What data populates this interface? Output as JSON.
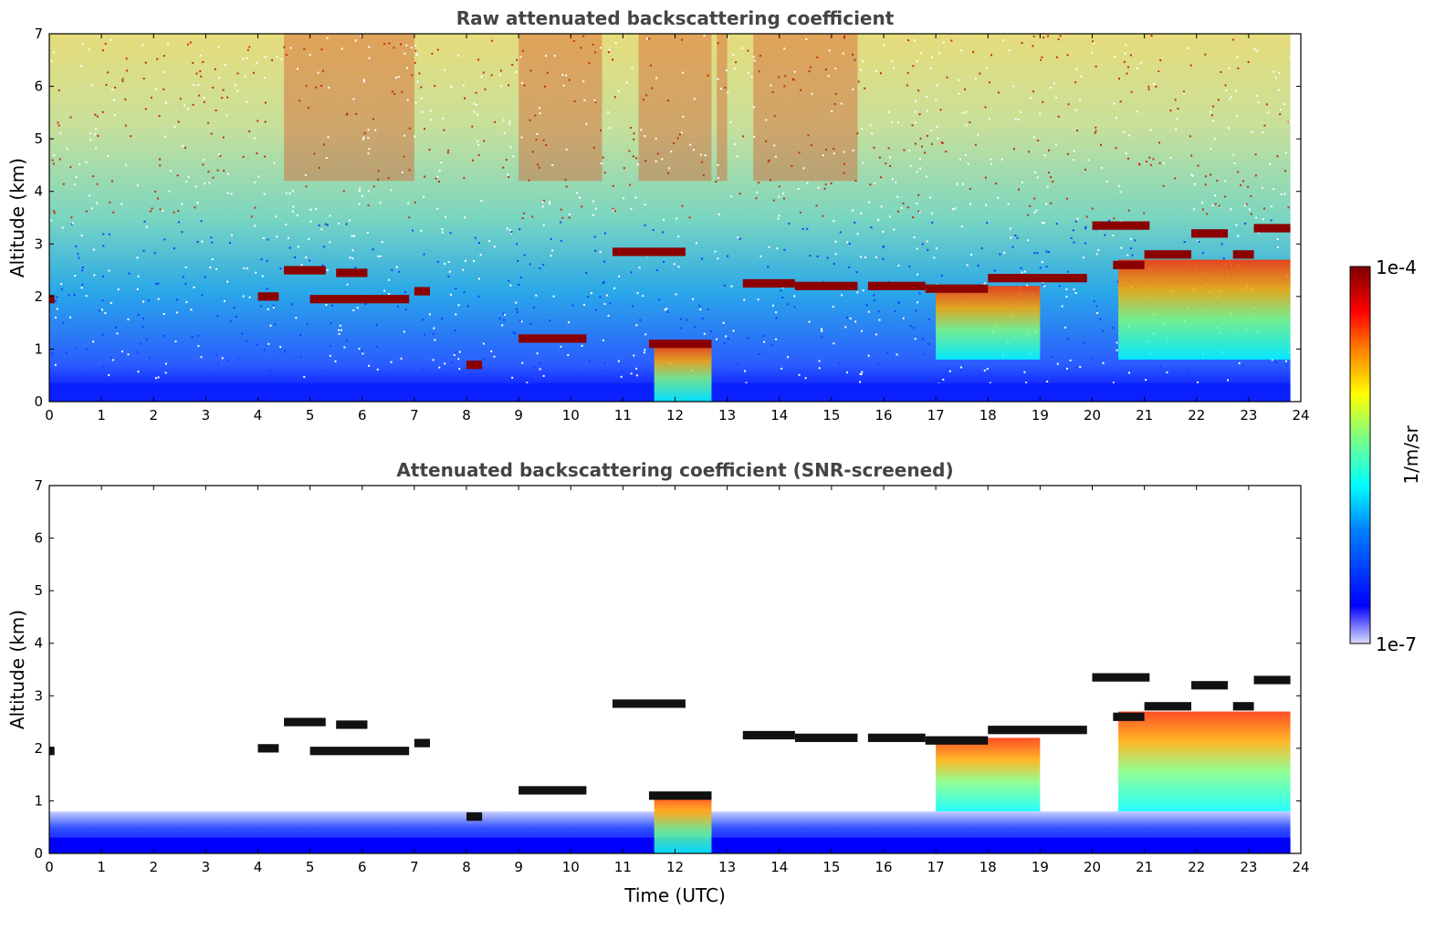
{
  "chart_data": [
    {
      "type": "heatmap",
      "title": "Raw attenuated backscattering coefficient",
      "xlabel": "",
      "ylabel": "Altitude (km)",
      "xlim": [
        0,
        24
      ],
      "ylim": [
        0,
        7
      ],
      "xticks": [
        "0",
        "1",
        "2",
        "3",
        "4",
        "5",
        "6",
        "7",
        "8",
        "9",
        "10",
        "11",
        "12",
        "13",
        "14",
        "15",
        "16",
        "17",
        "18",
        "19",
        "20",
        "21",
        "22",
        "23",
        "24"
      ],
      "yticks": [
        "0",
        "1",
        "2",
        "3",
        "4",
        "5",
        "6",
        "7"
      ],
      "x_units": "hours UTC",
      "y_units": "km",
      "data_extent_x": [
        0,
        23.8
      ],
      "cloud_layers": [
        {
          "x": [
            0.0,
            0.1
          ],
          "y": 1.95
        },
        {
          "x": [
            4.0,
            4.4
          ],
          "y": 2.0
        },
        {
          "x": [
            4.5,
            5.3
          ],
          "y": 2.5
        },
        {
          "x": [
            5.5,
            6.1
          ],
          "y": 2.45
        },
        {
          "x": [
            5.0,
            6.9
          ],
          "y": 1.95
        },
        {
          "x": [
            7.0,
            7.3
          ],
          "y": 2.1
        },
        {
          "x": [
            8.0,
            8.3
          ],
          "y": 0.7
        },
        {
          "x": [
            9.0,
            10.3
          ],
          "y": 1.2
        },
        {
          "x": [
            10.8,
            12.2
          ],
          "y": 2.85
        },
        {
          "x": [
            11.5,
            12.7
          ],
          "y": 1.1
        },
        {
          "x": [
            13.3,
            14.3
          ],
          "y": 2.25
        },
        {
          "x": [
            14.3,
            15.5
          ],
          "y": 2.2
        },
        {
          "x": [
            15.7,
            16.8
          ],
          "y": 2.2
        },
        {
          "x": [
            16.8,
            18.0
          ],
          "y": 2.15
        },
        {
          "x": [
            18.0,
            19.9
          ],
          "y": 2.35
        },
        {
          "x": [
            20.0,
            21.1
          ],
          "y": 3.35
        },
        {
          "x": [
            20.4,
            21.0
          ],
          "y": 2.6
        },
        {
          "x": [
            21.0,
            21.9
          ],
          "y": 2.8
        },
        {
          "x": [
            21.9,
            22.6
          ],
          "y": 3.2
        },
        {
          "x": [
            22.7,
            23.1
          ],
          "y": 2.8
        },
        {
          "x": [
            23.1,
            23.8
          ],
          "y": 3.3
        }
      ],
      "aerosol_plumes": [
        {
          "x": [
            17.0,
            19.0
          ],
          "y": [
            0.8,
            2.2
          ]
        },
        {
          "x": [
            20.5,
            23.8
          ],
          "y": [
            0.8,
            2.7
          ]
        },
        {
          "x": [
            11.6,
            12.7
          ],
          "y": [
            0.0,
            1.1
          ]
        }
      ]
    },
    {
      "type": "heatmap",
      "title": "Attenuated backscattering coefficient (SNR-screened)",
      "xlabel": "Time (UTC)",
      "ylabel": "Altitude (km)",
      "xlim": [
        0,
        24
      ],
      "ylim": [
        0,
        7
      ],
      "xticks": [
        "0",
        "1",
        "2",
        "3",
        "4",
        "5",
        "6",
        "7",
        "8",
        "9",
        "10",
        "11",
        "12",
        "13",
        "14",
        "15",
        "16",
        "17",
        "18",
        "19",
        "20",
        "21",
        "22",
        "23",
        "24"
      ],
      "yticks": [
        "0",
        "1",
        "2",
        "3",
        "4",
        "5",
        "6",
        "7"
      ],
      "x_units": "hours UTC",
      "y_units": "km",
      "data_extent_x": [
        0,
        23.8
      ]
    }
  ],
  "colorbar": {
    "label": "1/m/sr",
    "max_label": "1e-4",
    "min_label": "1e-7",
    "scale": "log",
    "range": [
      1e-07,
      0.0001
    ],
    "colormap": [
      "#00007f",
      "#0000ff",
      "#0080ff",
      "#00ffff",
      "#80ff80",
      "#ffff00",
      "#ff8000",
      "#ff0000",
      "#7f0000"
    ]
  }
}
